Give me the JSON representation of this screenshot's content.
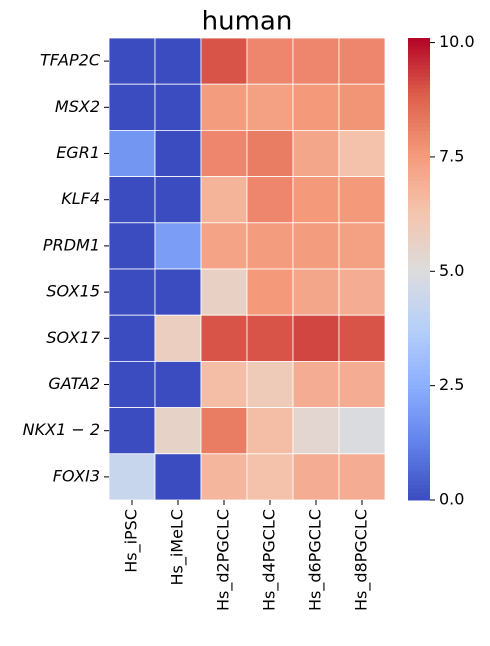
{
  "chart_data": {
    "type": "heatmap",
    "title": "human",
    "colormap": "coolwarm",
    "x": [
      "Hs_iPSC",
      "Hs_iMeLC",
      "Hs_d2PGCLC",
      "Hs_d4PGCLC",
      "Hs_d6PGCLC",
      "Hs_d8PGCLC"
    ],
    "categories": [
      "TFAP2C",
      "MSX2",
      "EGR1",
      "KLF4",
      "PRDM1",
      "SOX15",
      "SOX17",
      "GATA2",
      "NKX1 − 2",
      "FOXI3"
    ],
    "values": [
      [
        0,
        0,
        9.0,
        8.0,
        8.0,
        8.0
      ],
      [
        0,
        0,
        7.5,
        7.4,
        7.6,
        7.7
      ],
      [
        1.8,
        0,
        8.0,
        8.2,
        7.2,
        6.4
      ],
      [
        0,
        0,
        6.8,
        8.0,
        7.6,
        7.6
      ],
      [
        0,
        2.0,
        7.3,
        7.5,
        7.5,
        7.4
      ],
      [
        0,
        0,
        5.7,
        7.6,
        7.2,
        7.0
      ],
      [
        0,
        5.8,
        9.0,
        9.0,
        9.2,
        9.0
      ],
      [
        0,
        0,
        6.5,
        6.0,
        7.0,
        7.0
      ],
      [
        0,
        5.6,
        8.2,
        6.5,
        5.4,
        4.9
      ],
      [
        4.3,
        0,
        6.7,
        6.4,
        7.0,
        7.0
      ]
    ],
    "clim": [
      0,
      10.1
    ],
    "cticks": [
      {
        "value": 0,
        "label": "0.0"
      },
      {
        "value": 2.5,
        "label": "2.5"
      },
      {
        "value": 5,
        "label": "5.0"
      },
      {
        "value": 7.5,
        "label": "7.5"
      },
      {
        "value": 10,
        "label": "10.0"
      }
    ]
  }
}
